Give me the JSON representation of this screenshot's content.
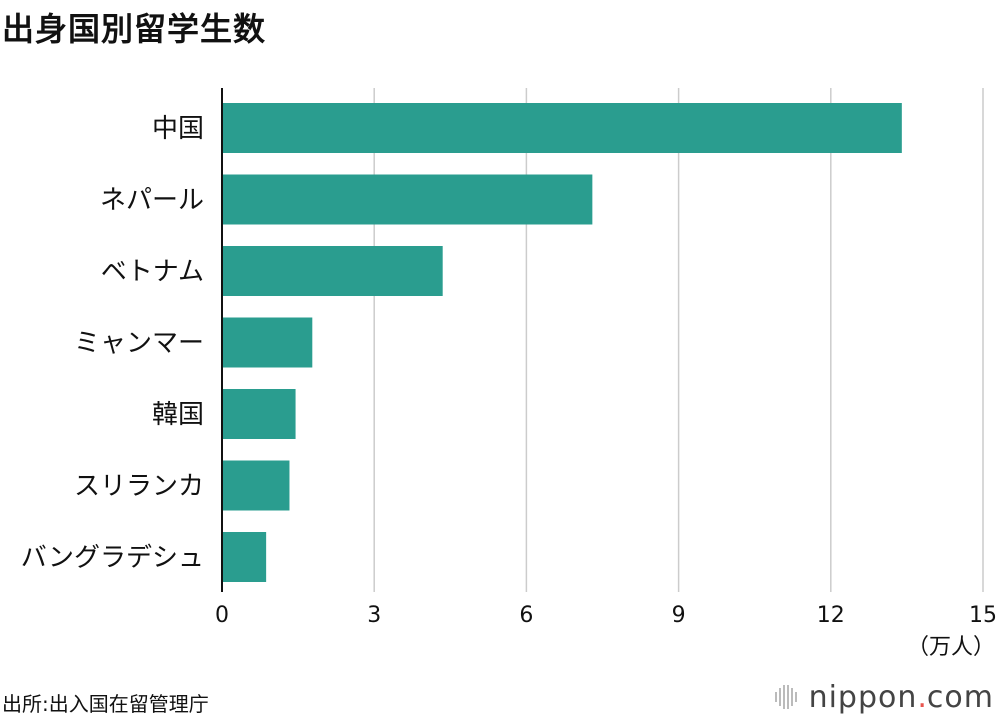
{
  "title": "出身国別留学生数",
  "source": "出所:出入国在留管理庁",
  "brand": {
    "name": "nippon",
    "dot": ".",
    "suffix": "com",
    "accent": "#e8564f",
    "icon": "nippon-logo-icon"
  },
  "colors": {
    "bar": "#2a9d8f",
    "grid": "#cccccc",
    "axis": "#111111"
  },
  "chart_data": {
    "type": "bar",
    "orientation": "horizontal",
    "title": "出身国別留学生数",
    "categories": [
      "中国",
      "ネパール",
      "ベトナム",
      "ミャンマー",
      "韓国",
      "スリランカ",
      "バングラデシュ"
    ],
    "values": [
      13.4,
      7.3,
      4.35,
      1.78,
      1.45,
      1.33,
      0.87
    ],
    "xlim": [
      0,
      15
    ],
    "xticks": [
      "0",
      "3",
      "6",
      "9",
      "12",
      "15"
    ],
    "unit": "（万人）",
    "grid": true
  }
}
